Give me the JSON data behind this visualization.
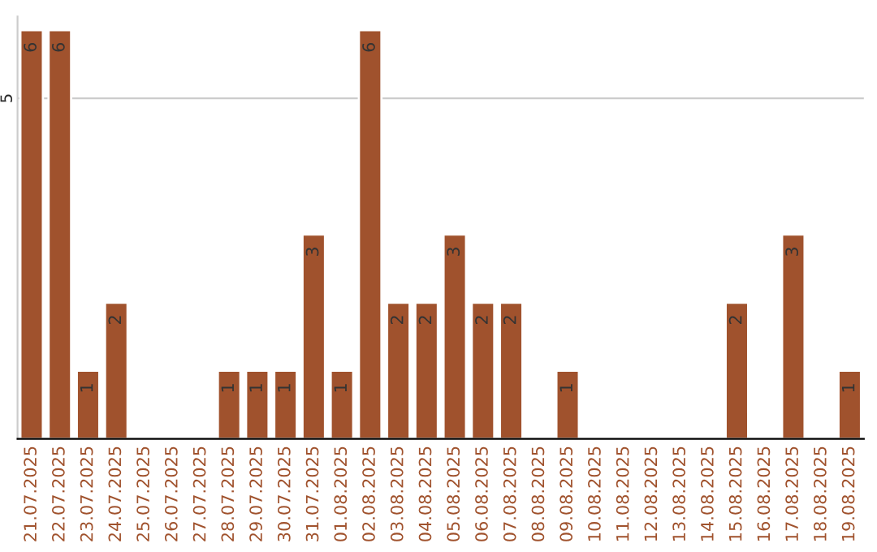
{
  "chart_data": {
    "type": "bar",
    "categories": [
      "21.07.2025",
      "22.07.2025",
      "23.07.2025",
      "24.07.2025",
      "25.07.2025",
      "26.07.2025",
      "27.07.2025",
      "28.07.2025",
      "29.07.2025",
      "30.07.2025",
      "31.07.2025",
      "01.08.2025",
      "02.08.2025",
      "03.08.2025",
      "04.08.2025",
      "05.08.2025",
      "06.08.2025",
      "07.08.2025",
      "08.08.2025",
      "09.08.2025",
      "10.08.2025",
      "11.08.2025",
      "12.08.2025",
      "13.08.2025",
      "14.08.2025",
      "15.08.2025",
      "16.08.2025",
      "17.08.2025",
      "18.08.2025",
      "19.08.2025"
    ],
    "values": [
      6,
      6,
      1,
      2,
      null,
      null,
      null,
      1,
      1,
      1,
      3,
      1,
      6,
      2,
      2,
      3,
      2,
      2,
      null,
      1,
      null,
      null,
      null,
      null,
      null,
      2,
      null,
      3,
      null,
      1
    ],
    "value_labels": [
      "6",
      "6",
      "1",
      "2",
      null,
      null,
      null,
      "1",
      "1",
      "1",
      "3",
      "1",
      "6",
      "2",
      "2",
      "3",
      "2",
      "2",
      null,
      "1",
      null,
      null,
      null,
      null,
      null,
      "2",
      null,
      "3",
      null,
      "1"
    ],
    "color": "#a0522d",
    "ylim": [
      0,
      6.2
    ],
    "yticks": [
      5
    ],
    "grid": "y"
  }
}
